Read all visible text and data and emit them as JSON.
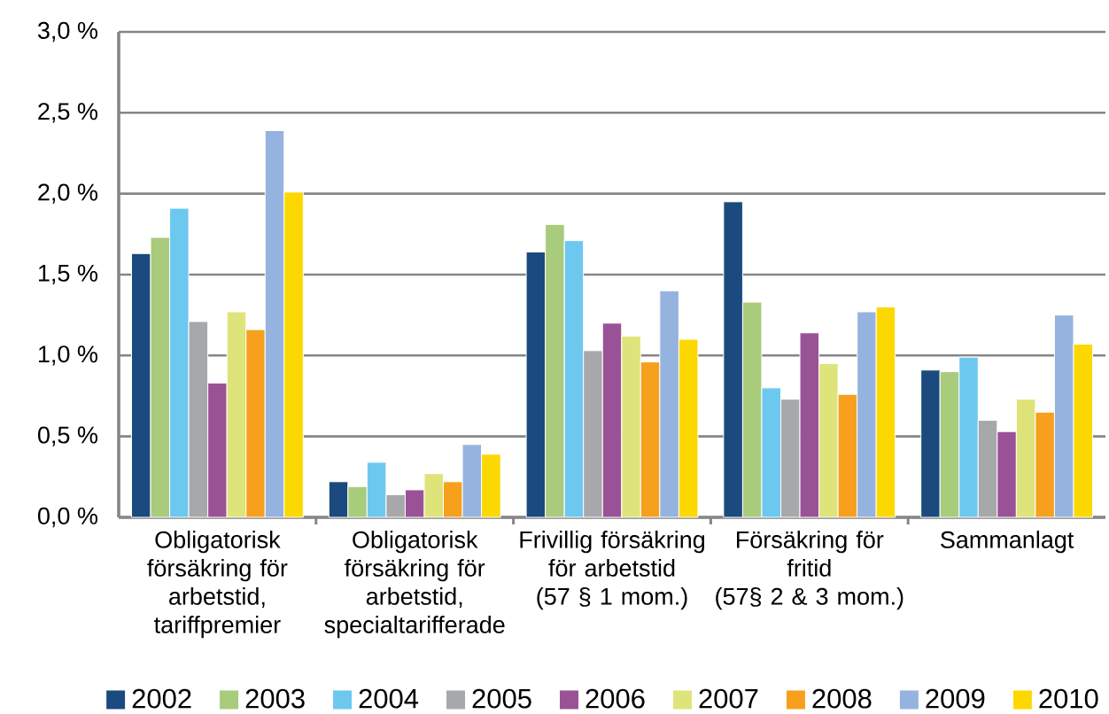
{
  "chart_data": {
    "type": "bar",
    "categories": [
      "Obligatorisk\nförsäkring för\narbetstid,\ntariffpremier",
      "Obligatorisk\nförsäkring för\narbetstid,\nspecialtarifferade",
      "Frivillig försäkring\nför arbetstid\n(57 § 1 mom.)",
      "Försäkring för\nfritid\n(57§ 2 & 3 mom.)",
      "Sammanlagt"
    ],
    "series": [
      {
        "name": "2002",
        "color": "#1a4a7e",
        "values": [
          1.63,
          0.22,
          1.64,
          1.95,
          0.91
        ]
      },
      {
        "name": "2003",
        "color": "#a9cb7c",
        "values": [
          1.73,
          0.19,
          1.81,
          1.33,
          0.9
        ]
      },
      {
        "name": "2004",
        "color": "#6dc8f0",
        "values": [
          1.91,
          0.34,
          1.71,
          0.8,
          0.99
        ]
      },
      {
        "name": "2005",
        "color": "#a6a8ab",
        "values": [
          1.21,
          0.14,
          1.03,
          0.73,
          0.6
        ]
      },
      {
        "name": "2006",
        "color": "#9a5296",
        "values": [
          0.83,
          0.17,
          1.2,
          1.14,
          0.53
        ]
      },
      {
        "name": "2007",
        "color": "#dfe47a",
        "values": [
          1.27,
          0.27,
          1.12,
          0.95,
          0.73
        ]
      },
      {
        "name": "2008",
        "color": "#f6a01e",
        "values": [
          1.16,
          0.22,
          0.96,
          0.76,
          0.65
        ]
      },
      {
        "name": "2009",
        "color": "#95b3de",
        "values": [
          2.39,
          0.45,
          1.4,
          1.27,
          1.25
        ]
      },
      {
        "name": "2010",
        "color": "#fcd800",
        "values": [
          2.01,
          0.39,
          1.1,
          1.3,
          1.07
        ]
      }
    ],
    "ylim": [
      0,
      3
    ],
    "yticks": [
      {
        "value": 0,
        "label": "0,0 %"
      },
      {
        "value": 0.5,
        "label": "0,5 %"
      },
      {
        "value": 1,
        "label": "1,0 %"
      },
      {
        "value": 1.5,
        "label": "1,5 %"
      },
      {
        "value": 2,
        "label": "2,0 %"
      },
      {
        "value": 2.5,
        "label": "2,5 %"
      },
      {
        "value": 3,
        "label": "3,0 %"
      }
    ],
    "grid": "y",
    "legend": "bottom"
  }
}
